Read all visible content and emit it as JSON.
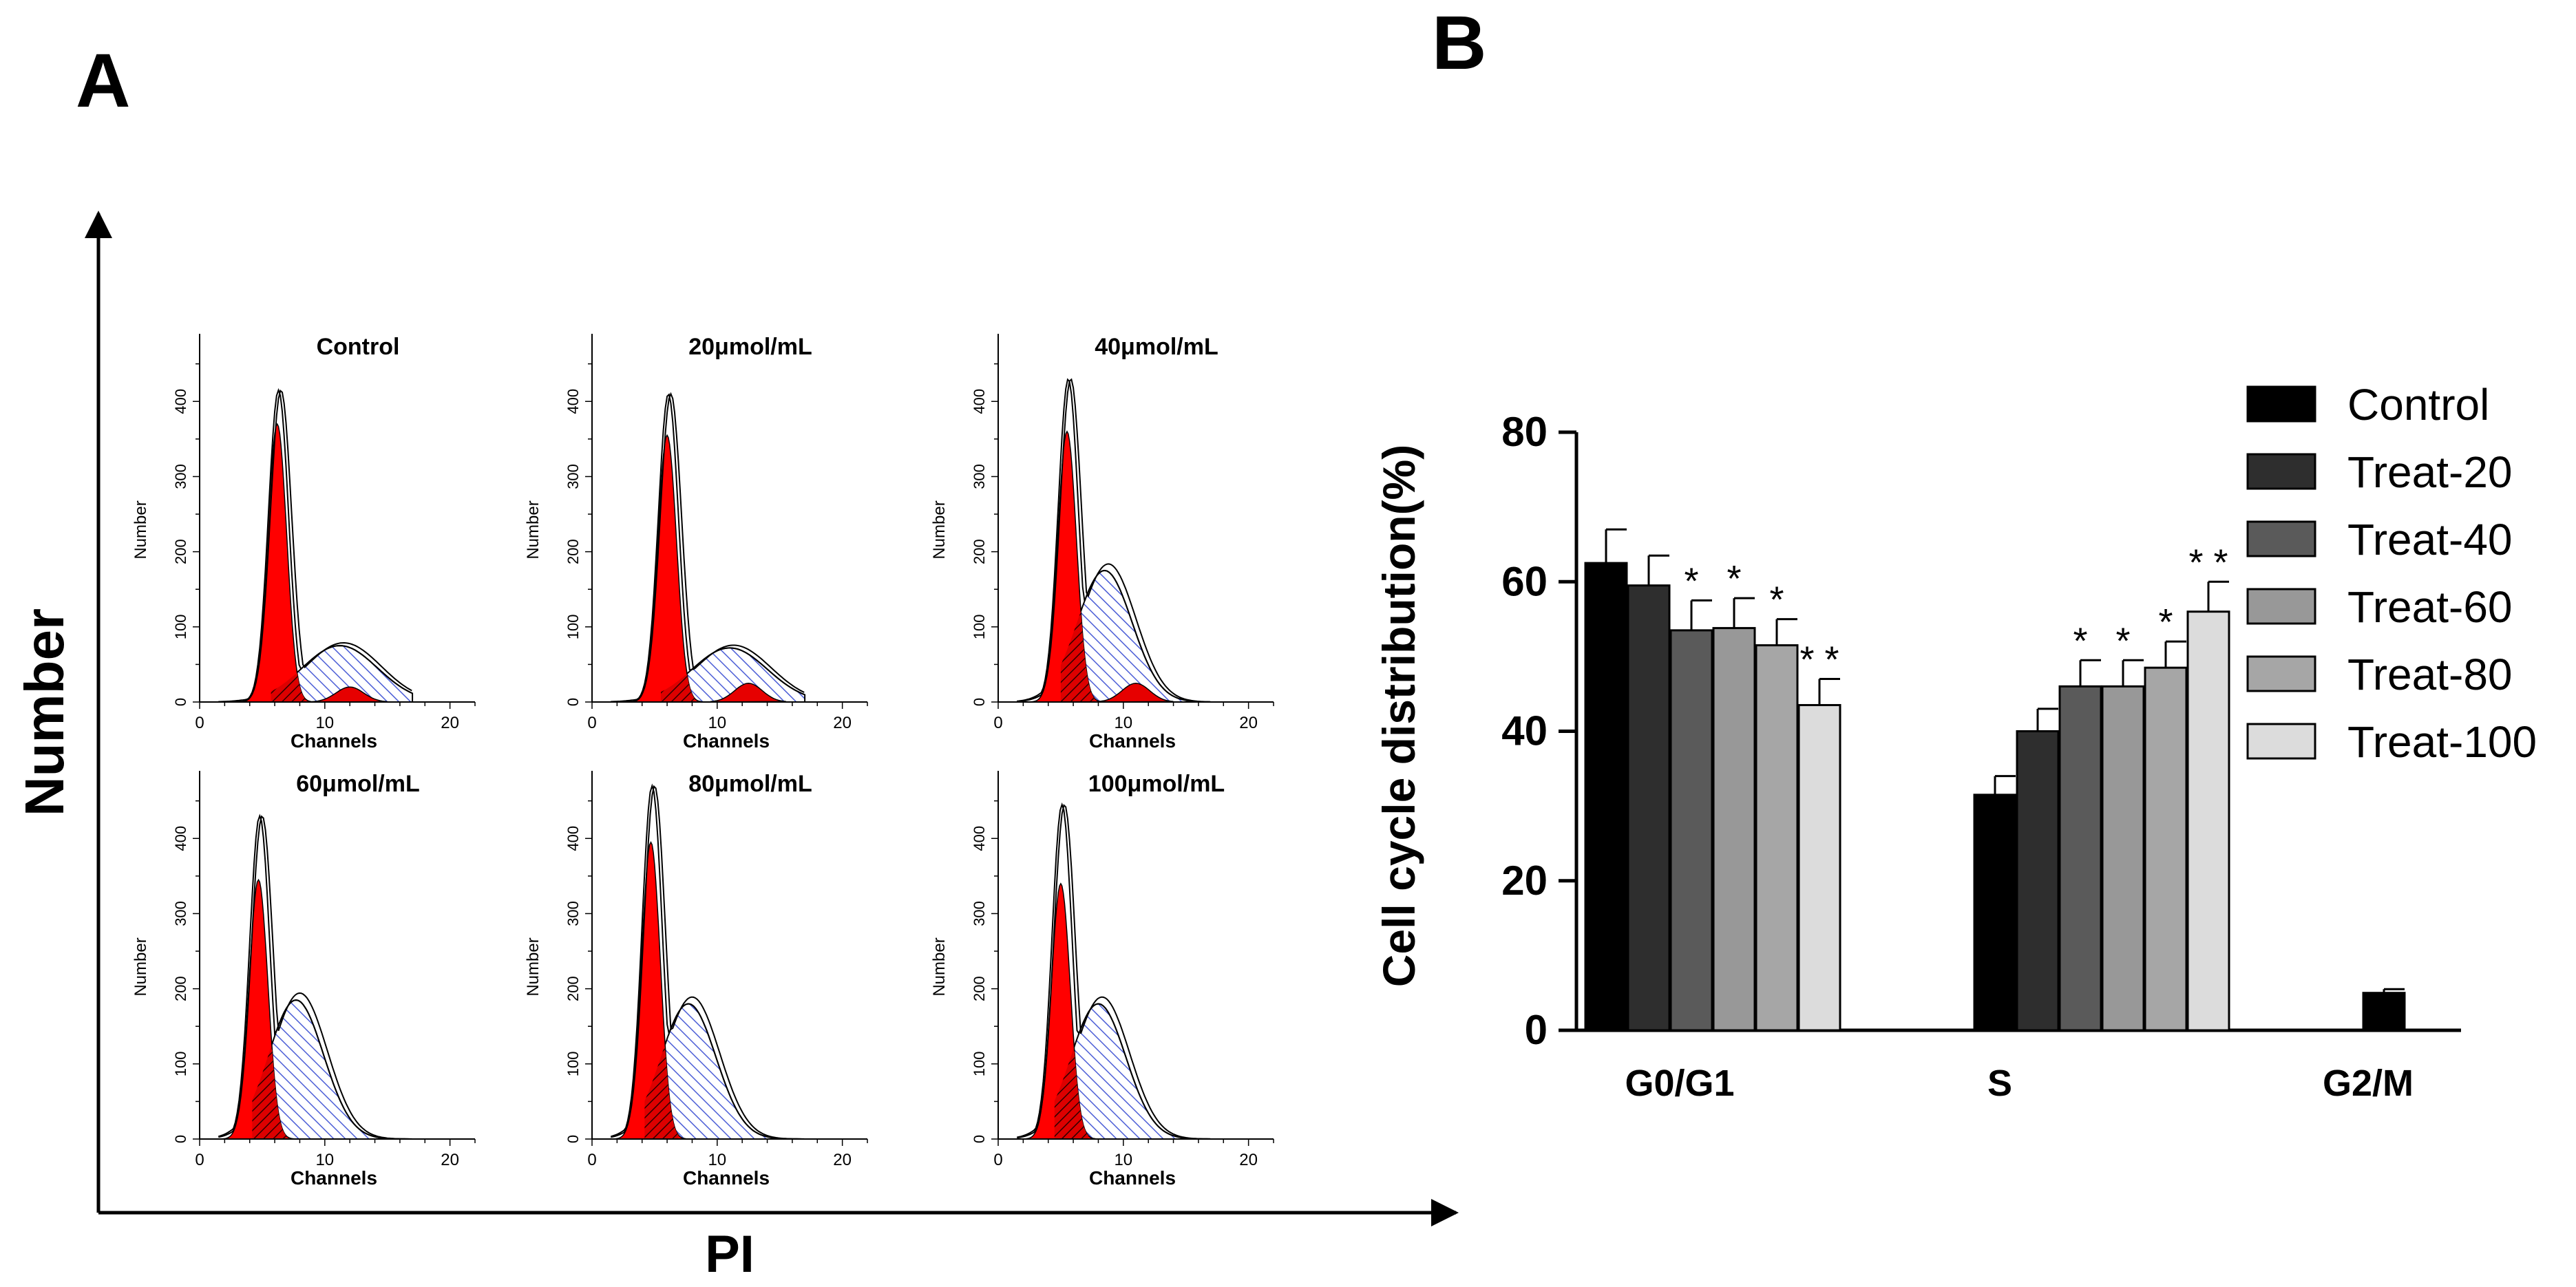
{
  "panel_labels": {
    "a": "A",
    "b": "B"
  },
  "panel_a": {
    "y_axis_title": "Number",
    "x_axis_title": "PI",
    "sub_ylabel": "Number",
    "sub_xlabel": "Channels",
    "x_ticks": [
      "0",
      "10",
      "20"
    ],
    "y_ticks": [
      "0",
      "100",
      "200",
      "300",
      "400"
    ],
    "colors": {
      "g1": "#ff0000",
      "s": "#4a5cd6",
      "g2": "#e60000",
      "envelope": "#000000"
    },
    "histograms": [
      {
        "title": "Control",
        "g1_peak": 370,
        "g1_mu": 6.2,
        "s_peak": 75,
        "g2_peak": 20,
        "g2_mu": 12.0,
        "envelope_peak": 415
      },
      {
        "title": "20μmol/mL",
        "g1_peak": 355,
        "g1_mu": 6.0,
        "s_peak": 72,
        "g2_peak": 25,
        "g2_mu": 12.5,
        "envelope_peak": 410
      },
      {
        "title": "40μmol/mL",
        "g1_peak": 360,
        "g1_mu": 5.5,
        "s_peak": 175,
        "g2_peak": 25,
        "g2_mu": 11.0,
        "envelope_peak": 430
      },
      {
        "title": "60μmol/mL",
        "g1_peak": 345,
        "g1_mu": 4.7,
        "s_peak": 185,
        "g2_peak": 0,
        "g2_mu": 12.0,
        "envelope_peak": 430
      },
      {
        "title": "80μmol/mL",
        "g1_peak": 395,
        "g1_mu": 4.7,
        "s_peak": 180,
        "g2_peak": 0,
        "g2_mu": 12.0,
        "envelope_peak": 470
      },
      {
        "title": "100μmol/mL",
        "g1_peak": 340,
        "g1_mu": 5.0,
        "s_peak": 180,
        "g2_peak": 0,
        "g2_mu": 12.0,
        "envelope_peak": 445
      }
    ]
  },
  "chart_data": {
    "type": "bar",
    "title": "",
    "xlabel": "",
    "ylabel": "Cell cycle distribution(%)",
    "ylim": [
      0,
      80
    ],
    "yticks": [
      0,
      20,
      40,
      60,
      80
    ],
    "categories": [
      "G0/G1",
      "S",
      "G2/M"
    ],
    "series": [
      {
        "name": "Control",
        "color": "#000000",
        "values": [
          62.5,
          31.5,
          5.0
        ],
        "errors": [
          4.5,
          2.5,
          0.5
        ],
        "sig": [
          "",
          "",
          ""
        ]
      },
      {
        "name": "Treat-20",
        "color": "#2e2e2e",
        "values": [
          59.5,
          40.0,
          0
        ],
        "errors": [
          4.0,
          3.0,
          0
        ],
        "sig": [
          "",
          "",
          ""
        ]
      },
      {
        "name": "Treat-40",
        "color": "#5a5a5a",
        "values": [
          53.5,
          46.0,
          0
        ],
        "errors": [
          4.0,
          3.5,
          0
        ],
        "sig": [
          "*",
          "*",
          ""
        ]
      },
      {
        "name": "Treat-60",
        "color": "#989898",
        "values": [
          53.8,
          46.0,
          0
        ],
        "errors": [
          4.0,
          3.5,
          0
        ],
        "sig": [
          "*",
          "*",
          ""
        ]
      },
      {
        "name": "Treat-80",
        "color": "#a6a6a6",
        "values": [
          51.5,
          48.5,
          0
        ],
        "errors": [
          3.5,
          3.5,
          0
        ],
        "sig": [
          "*",
          "*",
          ""
        ]
      },
      {
        "name": "Treat-100",
        "color": "#dcdcdc",
        "values": [
          43.5,
          56.0,
          0
        ],
        "errors": [
          3.5,
          4.0,
          0
        ],
        "sig": [
          "**",
          "**",
          ""
        ]
      }
    ],
    "legend_position": "right"
  }
}
